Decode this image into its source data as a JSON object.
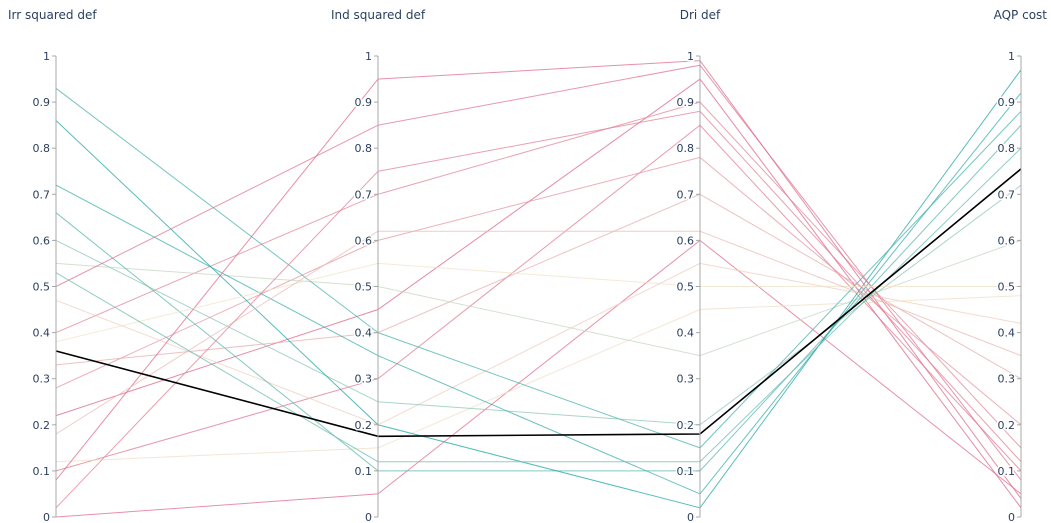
{
  "chart_data": {
    "type": "parallel_coordinates",
    "dimensions": [
      {
        "label": "Irr squared def",
        "range": [
          0,
          1
        ]
      },
      {
        "label": "Ind squared def",
        "range": [
          0,
          1
        ]
      },
      {
        "label": "Dri def",
        "range": [
          0,
          1
        ]
      },
      {
        "label": "AQP cost",
        "range": [
          0,
          1
        ]
      }
    ],
    "ticks": [
      "0",
      "0.1",
      "0.2",
      "0.3",
      "0.4",
      "0.5",
      "0.6",
      "0.7",
      "0.8",
      "0.9",
      "1"
    ],
    "color_dimension": "AQP cost",
    "colorscale": [
      "#dd5e84",
      "#f0e2c8",
      "#12a3a3"
    ],
    "highlighted_line": [
      0.36,
      0.175,
      0.18,
      0.755
    ],
    "highlight_color": "#000000",
    "sample_lines": [
      [
        0.0,
        0.05,
        0.6,
        0.05
      ],
      [
        0.1,
        0.3,
        0.85,
        0.1
      ],
      [
        0.22,
        0.45,
        0.95,
        0.02
      ],
      [
        0.28,
        0.6,
        0.78,
        0.2
      ],
      [
        0.33,
        0.4,
        0.7,
        0.3
      ],
      [
        0.4,
        0.7,
        0.9,
        0.15
      ],
      [
        0.47,
        0.2,
        0.55,
        0.42
      ],
      [
        0.12,
        0.15,
        0.45,
        0.48
      ],
      [
        0.55,
        0.5,
        0.35,
        0.6
      ],
      [
        0.6,
        0.25,
        0.2,
        0.72
      ],
      [
        0.66,
        0.1,
        0.1,
        0.85
      ],
      [
        0.72,
        0.35,
        0.05,
        0.92
      ],
      [
        0.86,
        0.2,
        0.02,
        0.97
      ],
      [
        0.93,
        0.4,
        0.15,
        0.88
      ],
      [
        0.5,
        0.85,
        0.98,
        0.08
      ],
      [
        0.08,
        0.95,
        0.99,
        0.04
      ],
      [
        0.38,
        0.55,
        0.5,
        0.5
      ],
      [
        0.18,
        0.62,
        0.62,
        0.35
      ],
      [
        0.53,
        0.12,
        0.12,
        0.8
      ],
      [
        0.02,
        0.75,
        0.88,
        0.12
      ]
    ]
  }
}
